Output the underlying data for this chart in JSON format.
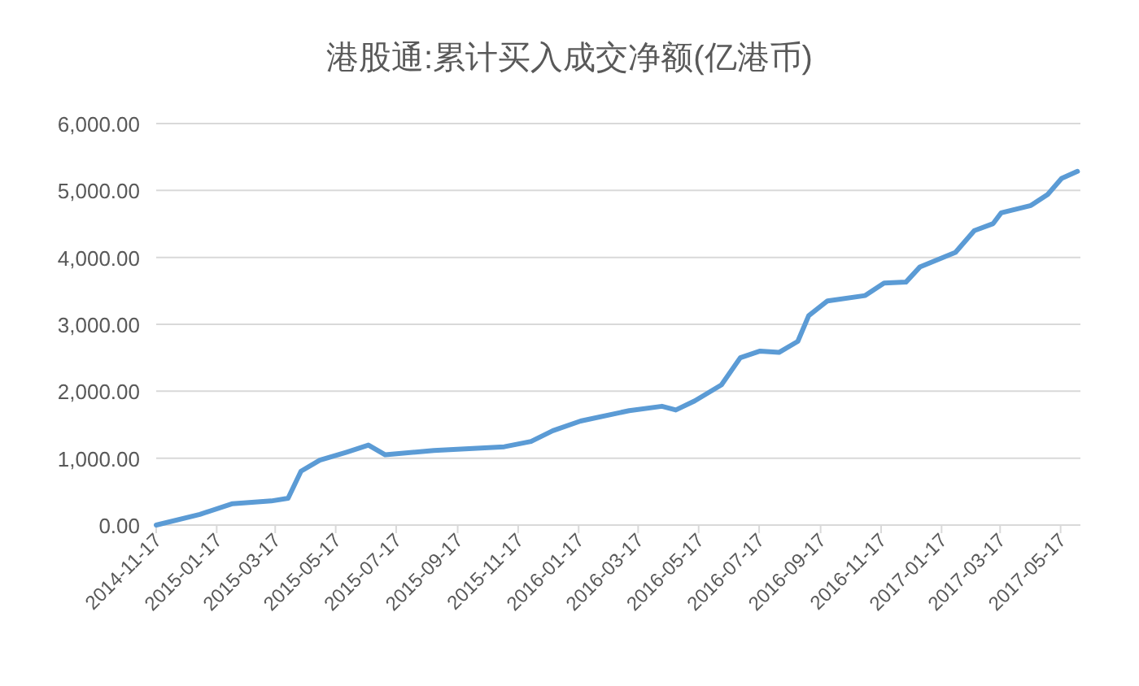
{
  "chart_data": {
    "type": "line",
    "title": "港股通:累计买入成交净额(亿港币)",
    "x": [
      "2014-11-17",
      "2014-12-31",
      "2015-02-02",
      "2015-03-13",
      "2015-03-30",
      "2015-04-12",
      "2015-05-01",
      "2015-05-28",
      "2015-06-19",
      "2015-07-06",
      "2015-08-24",
      "2015-11-03",
      "2015-11-30",
      "2015-12-22",
      "2016-01-19",
      "2016-03-08",
      "2016-04-10",
      "2016-04-24",
      "2016-05-13",
      "2016-06-09",
      "2016-06-28",
      "2016-07-18",
      "2016-08-06",
      "2016-08-25",
      "2016-09-05",
      "2016-09-24",
      "2016-11-01",
      "2016-11-20",
      "2016-12-12",
      "2016-12-26",
      "2017-01-31",
      "2017-02-19",
      "2017-03-10",
      "2017-03-18",
      "2017-04-17",
      "2017-05-04",
      "2017-05-18",
      "2017-06-03"
    ],
    "series": [
      {
        "color": "#5b9bd5",
        "values": [
          0,
          160,
          320,
          360,
          400,
          805,
          970,
          1090,
          1195,
          1050,
          1115,
          1170,
          1250,
          1410,
          1555,
          1710,
          1775,
          1720,
          1855,
          2095,
          2500,
          2600,
          2580,
          2745,
          3130,
          3350,
          3430,
          3615,
          3630,
          3855,
          4075,
          4400,
          4505,
          4665,
          4775,
          4940,
          5180,
          5285
        ]
      }
    ],
    "xlim": [
      "2014-11-17",
      "2017-06-06"
    ],
    "xticks": [
      "2014-11-17",
      "2015-01-17",
      "2015-03-17",
      "2015-05-17",
      "2015-07-17",
      "2015-09-17",
      "2015-11-17",
      "2016-01-17",
      "2016-03-17",
      "2016-05-17",
      "2016-07-17",
      "2016-09-17",
      "2016-11-17",
      "2017-01-17",
      "2017-03-17",
      "2017-05-17"
    ],
    "ylim": [
      0,
      6000
    ],
    "yticks": [
      {
        "value": 0,
        "label": "0.00"
      },
      {
        "value": 1000,
        "label": "1,000.00"
      },
      {
        "value": 2000,
        "label": "2,000.00"
      },
      {
        "value": 3000,
        "label": "3,000.00"
      },
      {
        "value": 4000,
        "label": "4,000.00"
      },
      {
        "value": 5000,
        "label": "5,000.00"
      },
      {
        "value": 6000,
        "label": "6,000.00"
      }
    ],
    "grid": "y",
    "marker": "none",
    "line_style": "solid"
  }
}
